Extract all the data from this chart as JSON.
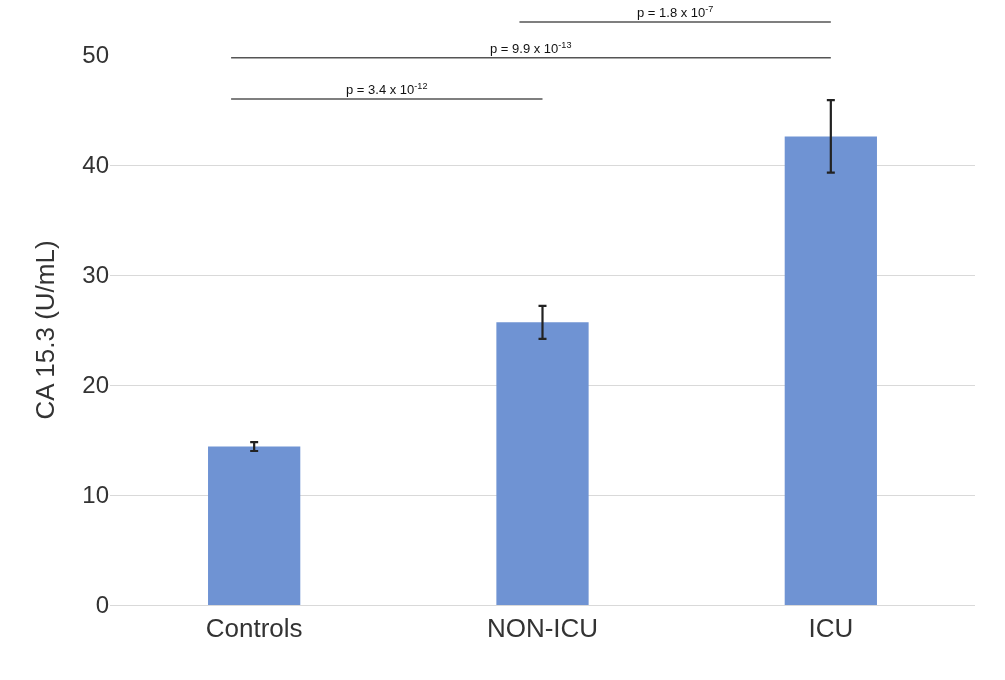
{
  "chart_data": {
    "type": "bar",
    "ylabel": "CA 15.3 (U/mL)",
    "categories": [
      "Controls",
      "NON-ICU",
      "ICU"
    ],
    "values": [
      14.4,
      25.7,
      42.6
    ],
    "errors": [
      0.4,
      1.5,
      3.3
    ],
    "color": "#6f93d3",
    "ylim": [
      0,
      50
    ],
    "yticks": [
      0,
      10,
      20,
      30,
      40,
      50
    ],
    "grid": "y",
    "legend": false,
    "annotations": [
      "p = 1.8 x 10$^{-7}$",
      "p = 9.9 x 10$^{-13}$",
      "p = 3.4 x 10$^{-12}$"
    ]
  }
}
